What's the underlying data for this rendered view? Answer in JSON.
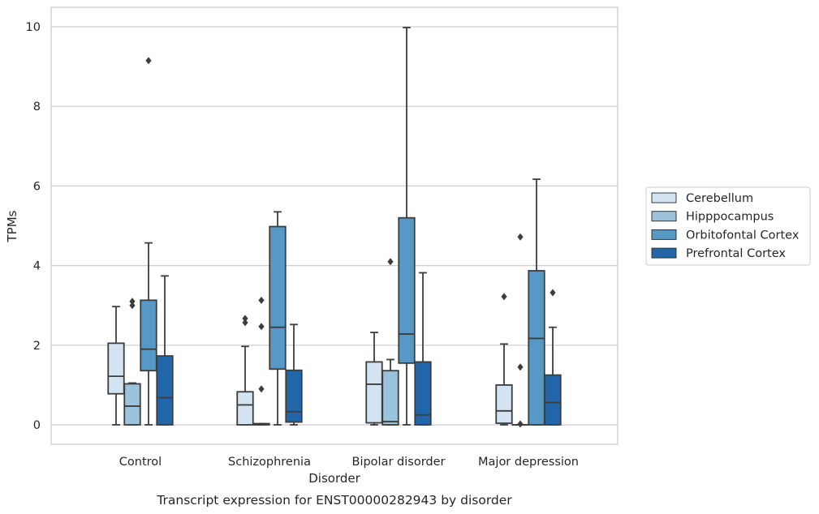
{
  "chart_data": {
    "type": "box",
    "caption": "Transcript expression for ENST00000282943 by disorder",
    "xlabel": "Disorder",
    "ylabel": "TPMs",
    "ylim": [
      -0.47,
      10.5
    ],
    "yticks": [
      0,
      2,
      4,
      6,
      8,
      10
    ],
    "grid": true,
    "legend_placement": "right",
    "categories": [
      "Control",
      "Schizophrenia",
      "Bipolar disorder",
      "Major depression"
    ],
    "series": [
      {
        "name": "Cerebellum",
        "color": "#d3e3f1",
        "boxes": [
          {
            "whislo": 0.0,
            "q1": 0.78,
            "med": 1.22,
            "q3": 2.05,
            "whishi": 2.97,
            "fliers": []
          },
          {
            "whislo": 0.0,
            "q1": 0.0,
            "med": 0.5,
            "q3": 0.83,
            "whishi": 1.97,
            "fliers": [
              2.57,
              2.67
            ]
          },
          {
            "whislo": 0.0,
            "q1": 0.05,
            "med": 1.02,
            "q3": 1.58,
            "whishi": 2.32,
            "fliers": []
          },
          {
            "whislo": 0.0,
            "q1": 0.04,
            "med": 0.35,
            "q3": 1.0,
            "whishi": 2.03,
            "fliers": [
              3.22
            ]
          }
        ]
      },
      {
        "name": "Hipppocampus",
        "color": "#9cc3dc",
        "boxes": [
          {
            "whislo": 0.0,
            "q1": 0.0,
            "med": 0.47,
            "q3": 1.03,
            "whishi": 1.05,
            "fliers": [
              3.0,
              3.1
            ]
          },
          {
            "whislo": 0.0,
            "q1": 0.0,
            "med": 0.02,
            "q3": 0.03,
            "whishi": 0.03,
            "fliers": [
              0.9,
              2.47,
              3.13
            ]
          },
          {
            "whislo": 0.0,
            "q1": 0.0,
            "med": 0.08,
            "q3": 1.36,
            "whishi": 1.64,
            "fliers": [
              4.1
            ]
          },
          {
            "whislo": 0.0,
            "q1": 0.0,
            "med": 0.0,
            "q3": 0.0,
            "whishi": 0.0,
            "fliers": [
              0.02,
              1.45,
              4.72
            ]
          }
        ]
      },
      {
        "name": "Orbitofontal Cortex",
        "color": "#5799c6",
        "boxes": [
          {
            "whislo": 0.0,
            "q1": 1.36,
            "med": 1.9,
            "q3": 3.13,
            "whishi": 4.57,
            "fliers": [
              9.15
            ]
          },
          {
            "whislo": 0.0,
            "q1": 1.4,
            "med": 2.45,
            "q3": 4.98,
            "whishi": 5.35,
            "fliers": []
          },
          {
            "whislo": 0.0,
            "q1": 1.55,
            "med": 2.28,
            "q3": 5.2,
            "whishi": 9.98,
            "fliers": []
          },
          {
            "whislo": 0.0,
            "q1": 0.0,
            "med": 2.17,
            "q3": 3.87,
            "whishi": 6.17,
            "fliers": []
          }
        ]
      },
      {
        "name": "Prefrontal Cortex",
        "color": "#2266aa",
        "boxes": [
          {
            "whislo": 0.0,
            "q1": 0.0,
            "med": 0.68,
            "q3": 1.73,
            "whishi": 3.74,
            "fliers": []
          },
          {
            "whislo": 0.0,
            "q1": 0.07,
            "med": 0.33,
            "q3": 1.37,
            "whishi": 2.52,
            "fliers": []
          },
          {
            "whislo": 0.0,
            "q1": 0.0,
            "med": 0.25,
            "q3": 1.58,
            "whishi": 3.82,
            "fliers": []
          },
          {
            "whislo": 0.0,
            "q1": 0.0,
            "med": 0.56,
            "q3": 1.25,
            "whishi": 2.45,
            "fliers": [
              3.32
            ]
          }
        ]
      }
    ]
  }
}
